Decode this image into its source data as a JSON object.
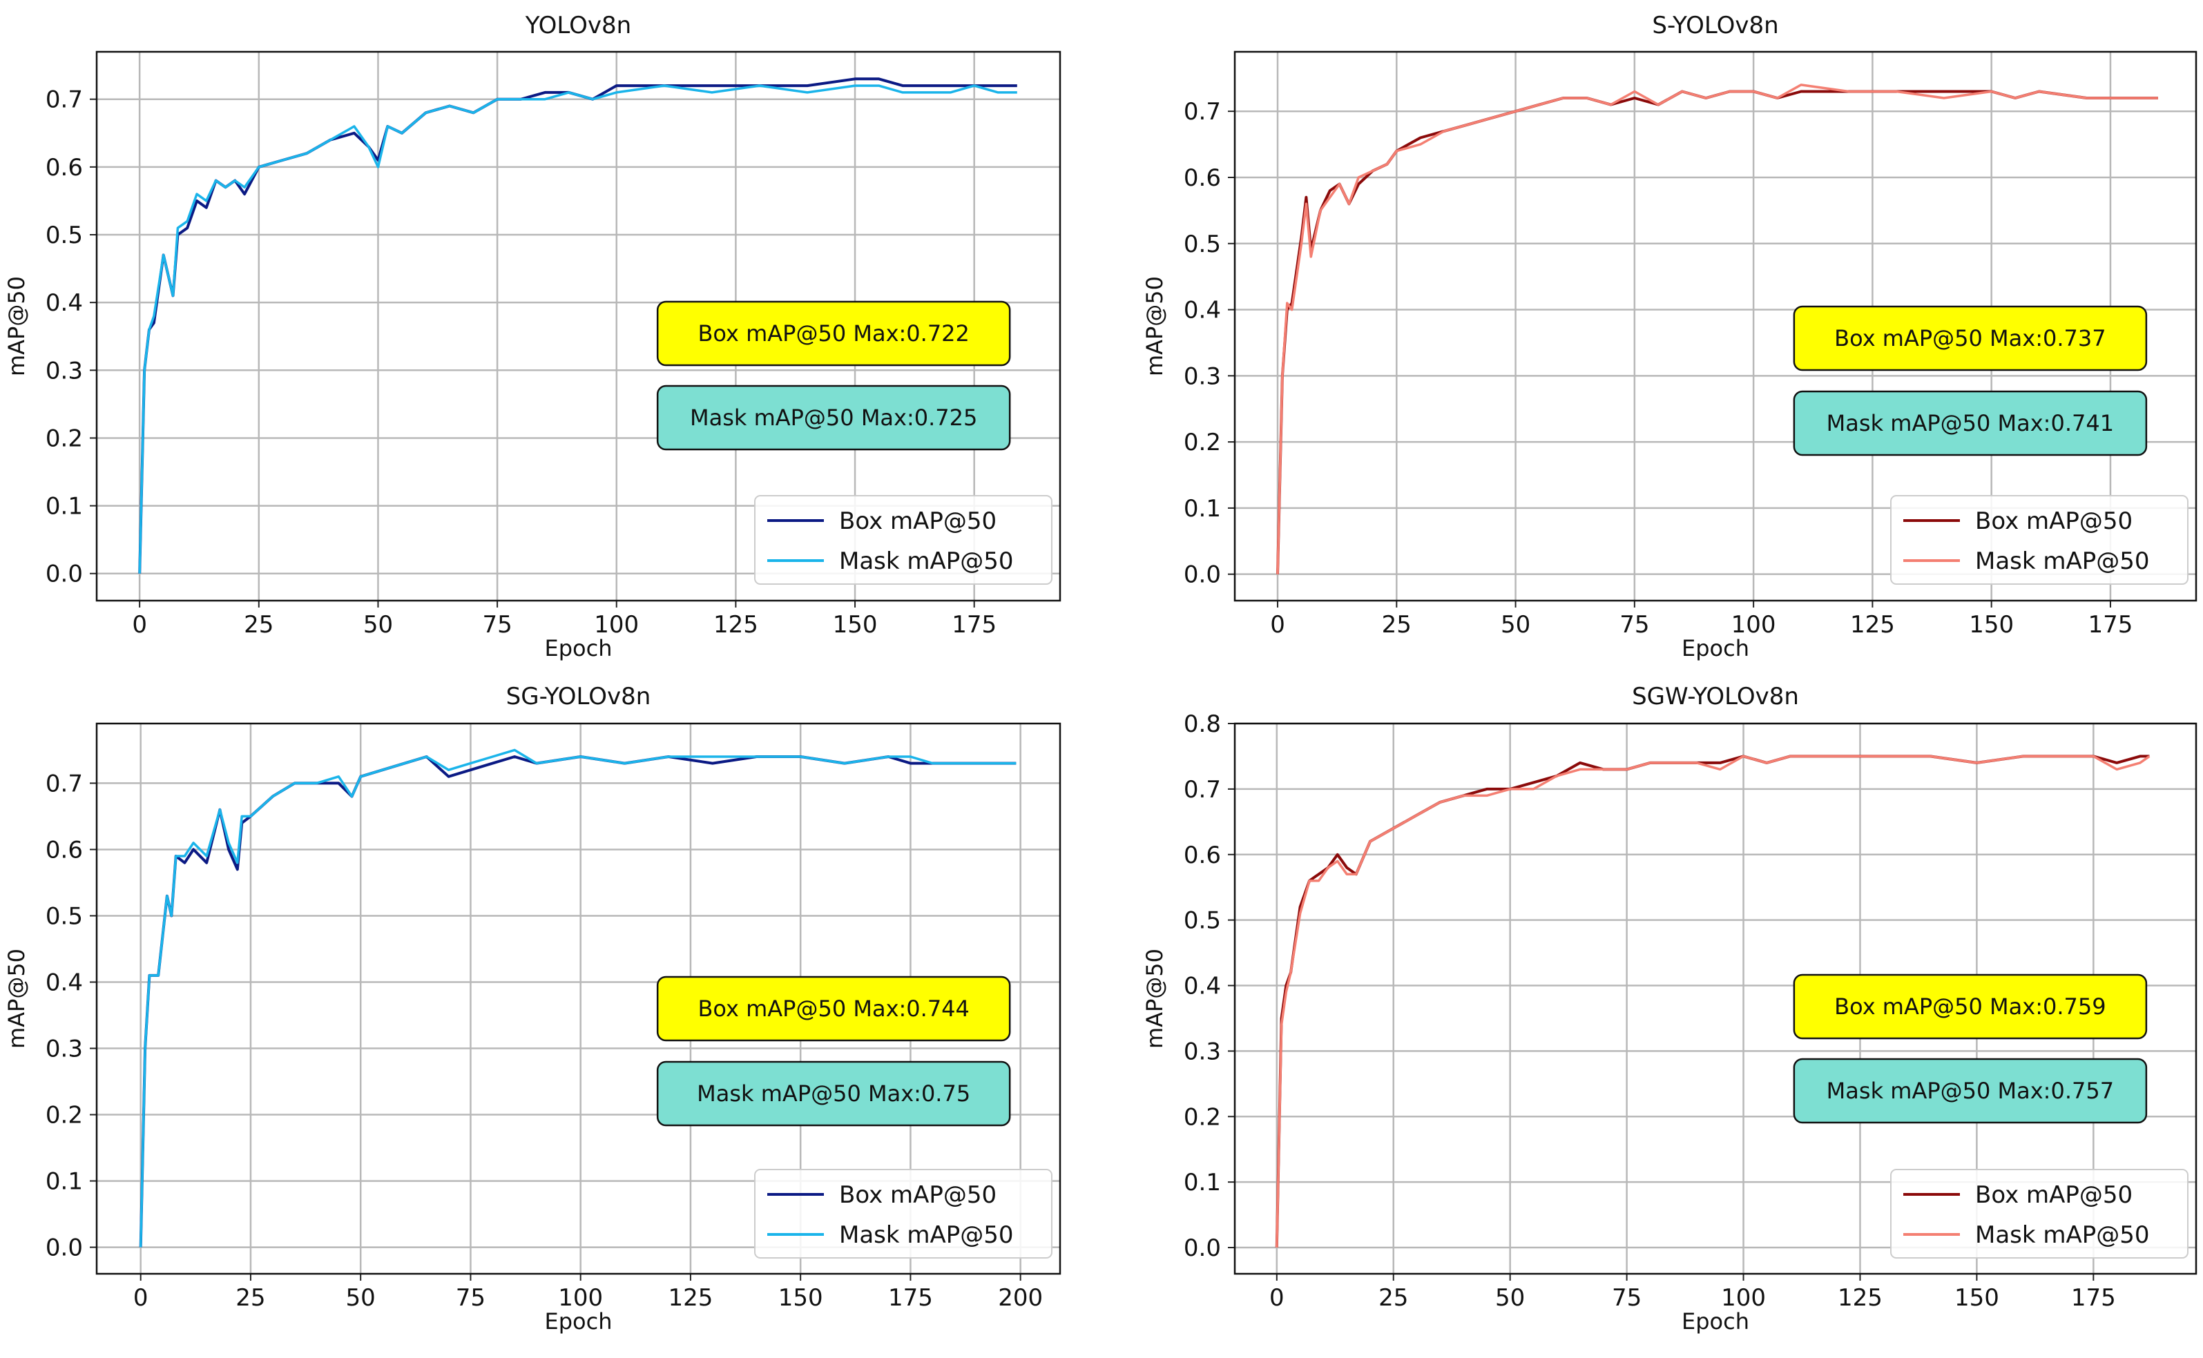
{
  "chart_data": [
    {
      "type": "line",
      "title": "YOLOv8n",
      "xlabel": "Epoch",
      "ylabel": "mAP@50",
      "xlim": [
        -9,
        193
      ],
      "ylim": [
        -0.04,
        0.77
      ],
      "xticks": [
        0,
        25,
        50,
        75,
        100,
        125,
        150,
        175
      ],
      "yticks": [
        0.0,
        0.1,
        0.2,
        0.3,
        0.4,
        0.5,
        0.6,
        0.7
      ],
      "grid": true,
      "legend_position": "lower-right",
      "series": [
        {
          "name": "Box mAP@50",
          "color": "#0b1a84",
          "x": [
            0,
            1,
            2,
            3,
            5,
            7,
            8,
            10,
            12,
            14,
            16,
            18,
            20,
            22,
            25,
            30,
            35,
            40,
            45,
            48,
            50,
            52,
            55,
            60,
            65,
            70,
            75,
            80,
            85,
            90,
            95,
            100,
            110,
            120,
            130,
            140,
            150,
            155,
            160,
            170,
            175,
            180,
            184
          ],
          "y": [
            0.0,
            0.3,
            0.36,
            0.37,
            0.47,
            0.41,
            0.5,
            0.51,
            0.55,
            0.54,
            0.58,
            0.57,
            0.58,
            0.56,
            0.6,
            0.61,
            0.62,
            0.64,
            0.65,
            0.63,
            0.61,
            0.66,
            0.65,
            0.68,
            0.69,
            0.68,
            0.7,
            0.7,
            0.71,
            0.71,
            0.7,
            0.72,
            0.72,
            0.72,
            0.72,
            0.72,
            0.73,
            0.73,
            0.72,
            0.72,
            0.72,
            0.72,
            0.72
          ]
        },
        {
          "name": "Mask mAP@50",
          "color": "#1ab4ea",
          "x": [
            0,
            1,
            2,
            3,
            5,
            7,
            8,
            10,
            12,
            14,
            16,
            18,
            20,
            22,
            25,
            30,
            35,
            40,
            45,
            48,
            50,
            52,
            55,
            60,
            65,
            70,
            75,
            80,
            85,
            90,
            95,
            100,
            110,
            120,
            130,
            140,
            150,
            155,
            160,
            170,
            175,
            180,
            184
          ],
          "y": [
            0.0,
            0.3,
            0.36,
            0.38,
            0.47,
            0.41,
            0.51,
            0.52,
            0.56,
            0.55,
            0.58,
            0.57,
            0.58,
            0.57,
            0.6,
            0.61,
            0.62,
            0.64,
            0.66,
            0.63,
            0.6,
            0.66,
            0.65,
            0.68,
            0.69,
            0.68,
            0.7,
            0.7,
            0.7,
            0.71,
            0.7,
            0.71,
            0.72,
            0.71,
            0.72,
            0.71,
            0.72,
            0.72,
            0.71,
            0.71,
            0.72,
            0.71,
            0.71
          ]
        }
      ],
      "annotations": [
        "Box mAP@50 Max:0.722",
        "Mask  mAP@50 Max:0.725"
      ],
      "annotation_colors": [
        "#ffff00",
        "#7ddfd2"
      ]
    },
    {
      "type": "line",
      "title": "S-YOLOv8n",
      "xlabel": "Epoch",
      "ylabel": "mAP@50",
      "xlim": [
        -9,
        193
      ],
      "ylim": [
        -0.04,
        0.79
      ],
      "xticks": [
        0,
        25,
        50,
        75,
        100,
        125,
        150,
        175
      ],
      "yticks": [
        0.0,
        0.1,
        0.2,
        0.3,
        0.4,
        0.5,
        0.6,
        0.7
      ],
      "grid": true,
      "legend_position": "lower-right",
      "series": [
        {
          "name": "Box mAP@50",
          "color": "#8b0a0a",
          "x": [
            0,
            1,
            2,
            3,
            5,
            6,
            7,
            9,
            11,
            13,
            15,
            17,
            20,
            23,
            25,
            30,
            35,
            40,
            45,
            50,
            55,
            60,
            65,
            70,
            75,
            80,
            85,
            90,
            95,
            100,
            105,
            110,
            120,
            130,
            140,
            150,
            155,
            160,
            170,
            175,
            180,
            185
          ],
          "y": [
            0.0,
            0.3,
            0.4,
            0.41,
            0.51,
            0.57,
            0.49,
            0.55,
            0.58,
            0.59,
            0.56,
            0.59,
            0.61,
            0.62,
            0.64,
            0.66,
            0.67,
            0.68,
            0.69,
            0.7,
            0.71,
            0.72,
            0.72,
            0.71,
            0.72,
            0.71,
            0.73,
            0.72,
            0.73,
            0.73,
            0.72,
            0.73,
            0.73,
            0.73,
            0.73,
            0.73,
            0.72,
            0.73,
            0.72,
            0.72,
            0.72,
            0.72
          ]
        },
        {
          "name": "Mask mAP@50",
          "color": "#f47f72",
          "x": [
            0,
            1,
            2,
            3,
            5,
            6,
            7,
            9,
            11,
            13,
            15,
            17,
            20,
            23,
            25,
            30,
            35,
            40,
            45,
            50,
            55,
            60,
            65,
            70,
            75,
            80,
            85,
            90,
            95,
            100,
            105,
            110,
            120,
            130,
            140,
            150,
            155,
            160,
            170,
            175,
            180,
            185
          ],
          "y": [
            0.0,
            0.3,
            0.41,
            0.4,
            0.5,
            0.56,
            0.48,
            0.55,
            0.57,
            0.59,
            0.56,
            0.6,
            0.61,
            0.62,
            0.64,
            0.65,
            0.67,
            0.68,
            0.69,
            0.7,
            0.71,
            0.72,
            0.72,
            0.71,
            0.73,
            0.71,
            0.73,
            0.72,
            0.73,
            0.73,
            0.72,
            0.74,
            0.73,
            0.73,
            0.72,
            0.73,
            0.72,
            0.73,
            0.72,
            0.72,
            0.72,
            0.72
          ]
        }
      ],
      "annotations": [
        "Box mAP@50 Max:0.737",
        "Mask mAP@50 Max:0.741"
      ],
      "annotation_colors": [
        "#ffff00",
        "#7ddfd2"
      ]
    },
    {
      "type": "line",
      "title": "SG-YOLOv8n",
      "xlabel": "Epoch",
      "ylabel": "mAP@50",
      "xlim": [
        -10,
        209
      ],
      "ylim": [
        -0.04,
        0.79
      ],
      "xticks": [
        0,
        25,
        50,
        75,
        100,
        125,
        150,
        175,
        200
      ],
      "yticks": [
        0.0,
        0.1,
        0.2,
        0.3,
        0.4,
        0.5,
        0.6,
        0.7
      ],
      "grid": true,
      "legend_position": "lower-right",
      "series": [
        {
          "name": "Box mAP@50",
          "color": "#0b1a84",
          "x": [
            0,
            1,
            2,
            4,
            6,
            7,
            8,
            10,
            12,
            15,
            18,
            20,
            22,
            23,
            25,
            30,
            35,
            40,
            45,
            48,
            50,
            55,
            60,
            65,
            70,
            75,
            80,
            85,
            90,
            100,
            110,
            120,
            130,
            140,
            150,
            160,
            170,
            175,
            180,
            190,
            195,
            199
          ],
          "y": [
            0.0,
            0.3,
            0.41,
            0.41,
            0.53,
            0.5,
            0.59,
            0.58,
            0.6,
            0.58,
            0.66,
            0.6,
            0.57,
            0.64,
            0.65,
            0.68,
            0.7,
            0.7,
            0.7,
            0.68,
            0.71,
            0.72,
            0.73,
            0.74,
            0.71,
            0.72,
            0.73,
            0.74,
            0.73,
            0.74,
            0.73,
            0.74,
            0.73,
            0.74,
            0.74,
            0.73,
            0.74,
            0.73,
            0.73,
            0.73,
            0.73,
            0.73
          ]
        },
        {
          "name": "Mask mAP@50",
          "color": "#1ab4ea",
          "x": [
            0,
            1,
            2,
            4,
            6,
            7,
            8,
            10,
            12,
            15,
            18,
            20,
            22,
            23,
            25,
            30,
            35,
            40,
            45,
            48,
            50,
            55,
            60,
            65,
            70,
            75,
            80,
            85,
            90,
            100,
            110,
            120,
            130,
            140,
            150,
            160,
            170,
            175,
            180,
            190,
            195,
            199
          ],
          "y": [
            0.0,
            0.3,
            0.41,
            0.41,
            0.53,
            0.5,
            0.59,
            0.59,
            0.61,
            0.59,
            0.66,
            0.61,
            0.58,
            0.65,
            0.65,
            0.68,
            0.7,
            0.7,
            0.71,
            0.68,
            0.71,
            0.72,
            0.73,
            0.74,
            0.72,
            0.73,
            0.74,
            0.75,
            0.73,
            0.74,
            0.73,
            0.74,
            0.74,
            0.74,
            0.74,
            0.73,
            0.74,
            0.74,
            0.73,
            0.73,
            0.73,
            0.73
          ]
        }
      ],
      "annotations": [
        "Box mAP@50 Max:0.744",
        "Mask mAP@50 Max:0.75"
      ],
      "annotation_colors": [
        "#ffff00",
        "#7ddfd2"
      ]
    },
    {
      "type": "line",
      "title": "SGW-YOLOv8n",
      "xlabel": "Epoch",
      "ylabel": "mAP@50",
      "xlim": [
        -9,
        197
      ],
      "ylim": [
        -0.04,
        0.8
      ],
      "xticks": [
        0,
        25,
        50,
        75,
        100,
        125,
        150,
        175
      ],
      "yticks": [
        0.0,
        0.1,
        0.2,
        0.3,
        0.4,
        0.5,
        0.6,
        0.7,
        0.8
      ],
      "grid": true,
      "legend_position": "lower-right",
      "series": [
        {
          "name": "Box mAP@50",
          "color": "#8b0a0a",
          "x": [
            0,
            1,
            2,
            3,
            5,
            7,
            9,
            11,
            13,
            15,
            17,
            20,
            25,
            30,
            35,
            40,
            45,
            50,
            55,
            60,
            65,
            70,
            75,
            80,
            85,
            90,
            95,
            100,
            105,
            110,
            120,
            130,
            140,
            150,
            160,
            170,
            175,
            180,
            185,
            187
          ],
          "y": [
            0.0,
            0.35,
            0.4,
            0.42,
            0.52,
            0.56,
            0.57,
            0.58,
            0.6,
            0.58,
            0.57,
            0.62,
            0.64,
            0.66,
            0.68,
            0.69,
            0.7,
            0.7,
            0.71,
            0.72,
            0.74,
            0.73,
            0.73,
            0.74,
            0.74,
            0.74,
            0.74,
            0.75,
            0.74,
            0.75,
            0.75,
            0.75,
            0.75,
            0.74,
            0.75,
            0.75,
            0.75,
            0.74,
            0.75,
            0.75
          ]
        },
        {
          "name": "Mask mAP@50",
          "color": "#f47f72",
          "x": [
            0,
            1,
            2,
            3,
            5,
            7,
            9,
            11,
            13,
            15,
            17,
            20,
            25,
            30,
            35,
            40,
            45,
            50,
            55,
            60,
            65,
            70,
            75,
            80,
            85,
            90,
            95,
            100,
            105,
            110,
            120,
            130,
            140,
            150,
            160,
            170,
            175,
            180,
            185,
            187
          ],
          "y": [
            0.0,
            0.34,
            0.39,
            0.42,
            0.51,
            0.56,
            0.56,
            0.58,
            0.59,
            0.57,
            0.57,
            0.62,
            0.64,
            0.66,
            0.68,
            0.69,
            0.69,
            0.7,
            0.7,
            0.72,
            0.73,
            0.73,
            0.73,
            0.74,
            0.74,
            0.74,
            0.73,
            0.75,
            0.74,
            0.75,
            0.75,
            0.75,
            0.75,
            0.74,
            0.75,
            0.75,
            0.75,
            0.73,
            0.74,
            0.75
          ]
        }
      ],
      "annotations": [
        "Box mAP@50 Max:0.759",
        "Mask mAP@50 Max:0.757"
      ],
      "annotation_colors": [
        "#ffff00",
        "#7ddfd2"
      ]
    }
  ]
}
